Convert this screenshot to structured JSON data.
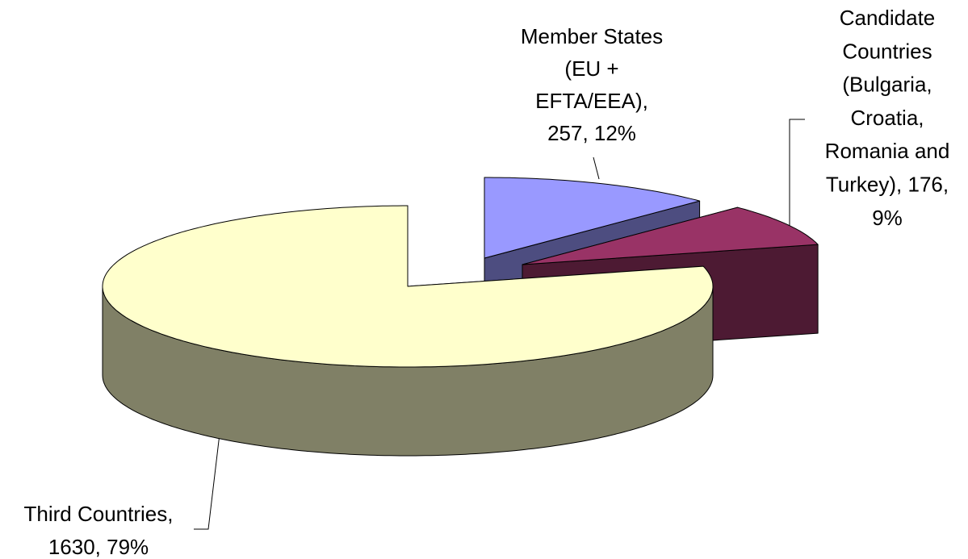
{
  "chart_data": {
    "type": "pie3d",
    "categories": [
      "Member States (EU + EFTA/EEA)",
      "Candidate Countries (Bulgaria, Croatia, Romania and Turkey)",
      "Third Countries"
    ],
    "values": [
      257,
      176,
      1630
    ],
    "labels": [
      [
        "Member States",
        "(EU +",
        "EFTA/EEA),",
        "257, 12%"
      ],
      [
        "Candidate",
        "Countries",
        "(Bulgaria,",
        "Croatia,",
        "Romania and",
        "Turkey), 176,",
        "9%"
      ],
      [
        "Third Countries,",
        "1630, 79%"
      ]
    ],
    "colors": [
      "#9999ff",
      "#993366",
      "#ffffcc"
    ],
    "side_colors": [
      "#4d4d80",
      "#4d1a33",
      "#808066"
    ]
  }
}
